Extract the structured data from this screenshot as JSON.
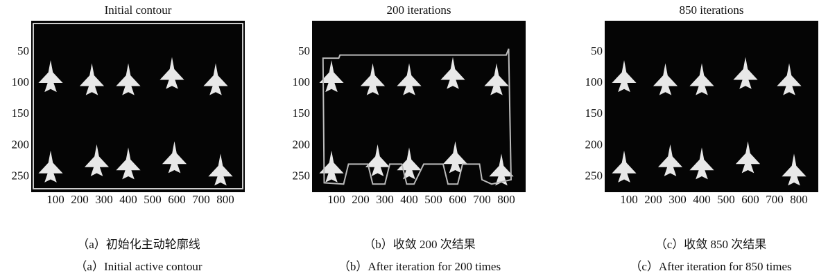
{
  "panels": [
    {
      "title": "Initial contour",
      "xlim": [
        0,
        880
      ],
      "ylim": [
        0,
        275
      ],
      "xticks": [
        100,
        200,
        300,
        400,
        500,
        600,
        700,
        800
      ],
      "yticks": [
        50,
        100,
        150,
        200,
        250
      ],
      "caption_zh": "（a）初始化主动轮廓线",
      "caption_en": "（a）Initial active contour"
    },
    {
      "title": "200 iterations",
      "xlim": [
        0,
        880
      ],
      "ylim": [
        0,
        275
      ],
      "xticks": [
        100,
        200,
        300,
        400,
        500,
        600,
        700,
        800
      ],
      "yticks": [
        50,
        100,
        150,
        200,
        250
      ],
      "caption_zh": "（b）收敛 200 次结果",
      "caption_en": "（b）After iteration for 200 times"
    },
    {
      "title": "850 iterations",
      "xlim": [
        0,
        880
      ],
      "ylim": [
        0,
        275
      ],
      "xticks": [
        100,
        200,
        300,
        400,
        500,
        600,
        700,
        800
      ],
      "yticks": [
        50,
        100,
        150,
        200,
        250
      ],
      "caption_zh": "（c）收敛 850 次结果",
      "caption_en": "（c）After iteration for 850 times"
    }
  ]
}
